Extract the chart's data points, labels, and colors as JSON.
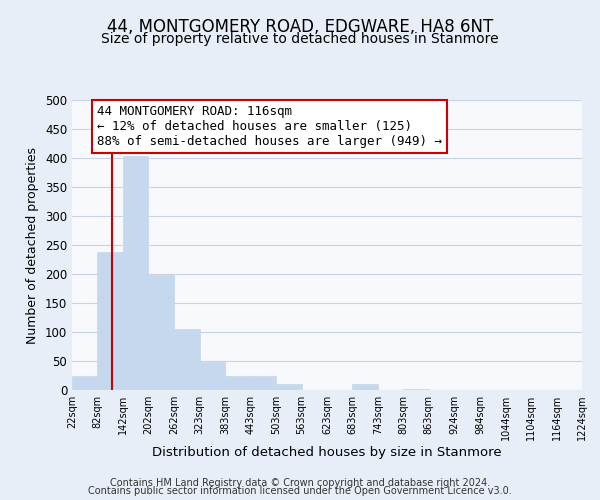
{
  "title": "44, MONTGOMERY ROAD, EDGWARE, HA8 6NT",
  "subtitle": "Size of property relative to detached houses in Stanmore",
  "xlabel": "Distribution of detached houses by size in Stanmore",
  "ylabel": "Number of detached properties",
  "bar_color": "#c5d8ee",
  "bin_edges": [
    22,
    82,
    142,
    202,
    262,
    323,
    383,
    443,
    503,
    563,
    623,
    683,
    743,
    803,
    863,
    924,
    984,
    1044,
    1104,
    1164,
    1224
  ],
  "bar_heights": [
    25,
    238,
    403,
    199,
    105,
    48,
    25,
    25,
    10,
    0,
    0,
    10,
    0,
    2,
    0,
    0,
    0,
    0,
    0,
    0
  ],
  "property_size": 116,
  "red_line_color": "#cc0000",
  "annotation_line1": "44 MONTGOMERY ROAD: 116sqm",
  "annotation_line2": "← 12% of detached houses are smaller (125)",
  "annotation_line3": "88% of semi-detached houses are larger (949) →",
  "annotation_box_color": "#ffffff",
  "annotation_box_edge_color": "#cc0000",
  "ylim": [
    0,
    500
  ],
  "tick_labels": [
    "22sqm",
    "82sqm",
    "142sqm",
    "202sqm",
    "262sqm",
    "323sqm",
    "383sqm",
    "443sqm",
    "503sqm",
    "563sqm",
    "623sqm",
    "683sqm",
    "743sqm",
    "803sqm",
    "863sqm",
    "924sqm",
    "984sqm",
    "1044sqm",
    "1104sqm",
    "1164sqm",
    "1224sqm"
  ],
  "footnote1": "Contains HM Land Registry data © Crown copyright and database right 2024.",
  "footnote2": "Contains public sector information licensed under the Open Government Licence v3.0.",
  "background_color": "#e8eef8",
  "plot_bg_color": "#f7f9fc",
  "grid_color": "#c8d4e4",
  "title_fontsize": 12,
  "subtitle_fontsize": 10,
  "xlabel_fontsize": 9.5,
  "ylabel_fontsize": 9,
  "annotation_fontsize": 9,
  "footnote_fontsize": 7
}
